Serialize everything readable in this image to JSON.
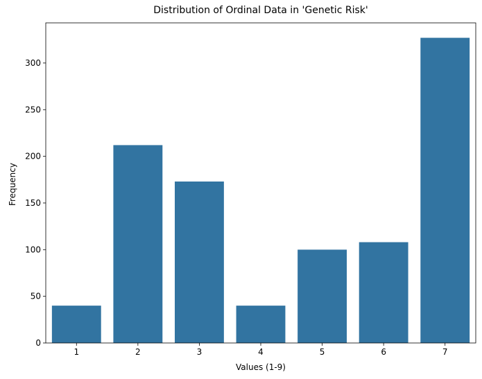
{
  "chart_data": {
    "type": "bar",
    "title": "Distribution of Ordinal Data in 'Genetic Risk'",
    "xlabel": "Values (1-9)",
    "ylabel": "Frequency",
    "categories": [
      "1",
      "2",
      "3",
      "4",
      "5",
      "6",
      "7"
    ],
    "values": [
      40,
      212,
      173,
      40,
      100,
      108,
      327
    ],
    "ylim": [
      0,
      343
    ],
    "yticks": [
      0,
      50,
      100,
      150,
      200,
      250,
      300
    ],
    "grid": false,
    "bar_color": "#3274a1"
  }
}
